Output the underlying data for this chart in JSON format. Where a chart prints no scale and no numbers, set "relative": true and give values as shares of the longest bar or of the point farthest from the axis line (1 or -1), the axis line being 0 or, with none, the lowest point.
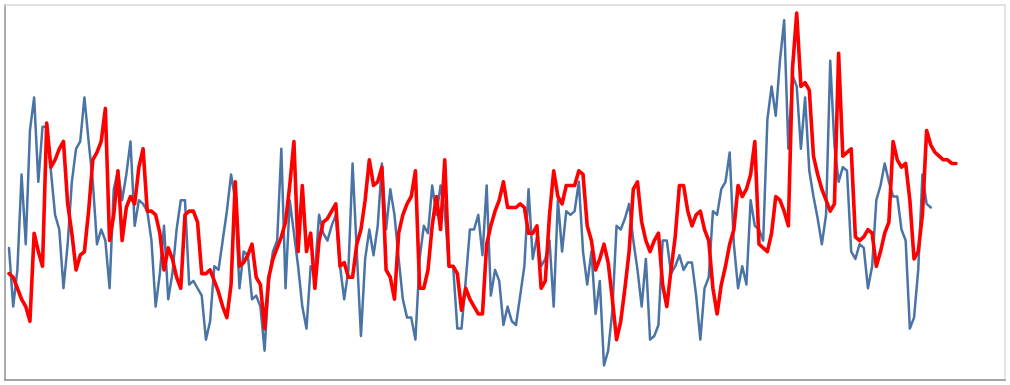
{
  "chart_data": {
    "type": "line",
    "relative": true,
    "categories": [
      null,
      null,
      null,
      null,
      null,
      null,
      null,
      null,
      null,
      null,
      null,
      null,
      null,
      null,
      null,
      null,
      null,
      null,
      null,
      null,
      null,
      null,
      null,
      null,
      null,
      null,
      null,
      null,
      null,
      null,
      null,
      null,
      null,
      null,
      null,
      null,
      null,
      null,
      null,
      null,
      null,
      null,
      null,
      null,
      null,
      null,
      null,
      null,
      null,
      null,
      null,
      null,
      null,
      null,
      null,
      null,
      null,
      null,
      null,
      null,
      null,
      null,
      null,
      null,
      null,
      null,
      null,
      null,
      null,
      null,
      null,
      null,
      null,
      null,
      null,
      null,
      null,
      null,
      null,
      null,
      null,
      null,
      null,
      null,
      null,
      null,
      null,
      null,
      null,
      null,
      null,
      null,
      null,
      null,
      null,
      null,
      null,
      null,
      null,
      null,
      null,
      null,
      null,
      null,
      null,
      null,
      null,
      null,
      null,
      null,
      null,
      null,
      null,
      null,
      null,
      null,
      null,
      null,
      null,
      null,
      null,
      null,
      null,
      null,
      null,
      null,
      null,
      null,
      null,
      null,
      null,
      null,
      null,
      null,
      null,
      null,
      null,
      null,
      null,
      null,
      null,
      null,
      null,
      null,
      null,
      null,
      null,
      null,
      null,
      null,
      null,
      null,
      null,
      null,
      null,
      null,
      null,
      null,
      null,
      null,
      null,
      null,
      null,
      null,
      null,
      null,
      null,
      null,
      null,
      null,
      null,
      null,
      null,
      null,
      null,
      null,
      null,
      null,
      null,
      null,
      null,
      null,
      null,
      null,
      null,
      null,
      null,
      null,
      null,
      null,
      null,
      null,
      null,
      null,
      null,
      null,
      null,
      null,
      null,
      null,
      null,
      null,
      null,
      null,
      null,
      null,
      null,
      null,
      null,
      null,
      null,
      null,
      null,
      null,
      null,
      null,
      null,
      null,
      null,
      null,
      null,
      null,
      null,
      null,
      null,
      null,
      null
    ],
    "series": [
      {
        "color": "#4a74a5",
        "values": [
          0.36,
          0.2,
          0.3,
          0.56,
          0.37,
          0.68,
          0.77,
          0.54,
          0.69,
          0.69,
          0.57,
          0.45,
          0.41,
          0.25,
          0.37,
          0.54,
          0.63,
          0.65,
          0.77,
          0.65,
          0.54,
          0.37,
          0.41,
          0.38,
          0.25,
          0.52,
          0.57,
          0.49,
          0.56,
          0.65,
          0.42,
          0.49,
          0.48,
          0.46,
          0.38,
          0.2,
          0.29,
          0.42,
          0.22,
          0.29,
          0.41,
          0.49,
          0.49,
          0.26,
          0.27,
          0.25,
          0.23,
          0.11,
          0.16,
          0.31,
          0.3,
          0.38,
          0.46,
          0.56,
          0.49,
          0.25,
          0.35,
          0.34,
          0.22,
          0.23,
          0.2,
          0.08,
          0.27,
          0.35,
          0.38,
          0.63,
          0.25,
          0.49,
          0.4,
          0.31,
          0.2,
          0.14,
          0.31,
          0.29,
          0.45,
          0.4,
          0.38,
          0.42,
          0.45,
          0.31,
          0.22,
          0.3,
          0.59,
          0.35,
          0.12,
          0.33,
          0.41,
          0.34,
          0.42,
          0.59,
          0.41,
          0.52,
          0.45,
          0.33,
          0.22,
          0.17,
          0.17,
          0.11,
          0.33,
          0.42,
          0.4,
          0.53,
          0.45,
          0.53,
          0.46,
          0.31,
          0.31,
          0.14,
          0.14,
          0.27,
          0.41,
          0.41,
          0.45,
          0.34,
          0.53,
          0.23,
          0.3,
          0.27,
          0.15,
          0.2,
          0.16,
          0.15,
          0.23,
          0.31,
          0.52,
          0.33,
          0.39,
          0.31,
          0.33,
          0.38,
          0.2,
          0.49,
          0.35,
          0.46,
          0.45,
          0.46,
          0.54,
          0.35,
          0.26,
          0.35,
          0.18,
          0.27,
          0.04,
          0.08,
          0.19,
          0.42,
          0.41,
          0.44,
          0.48,
          0.38,
          0.3,
          0.2,
          0.33,
          0.11,
          0.12,
          0.15,
          0.38,
          0.38,
          0.29,
          0.31,
          0.34,
          0.3,
          0.32,
          0.32,
          0.23,
          0.11,
          0.25,
          0.28,
          0.46,
          0.45,
          0.52,
          0.54,
          0.62,
          0.37,
          0.25,
          0.31,
          0.26,
          0.49,
          0.42,
          0.41,
          0.38,
          0.71,
          0.8,
          0.72,
          0.87,
          0.98,
          0.63,
          0.83,
          0.8,
          0.63,
          0.77,
          0.57,
          0.5,
          0.44,
          0.37,
          0.45,
          0.87,
          0.64,
          0.54,
          0.58,
          0.57,
          0.35,
          0.33,
          0.37,
          0.36,
          0.25,
          0.31,
          0.49,
          0.53,
          0.59,
          0.54,
          0.5,
          0.5,
          0.41,
          0.38,
          0.14,
          0.17,
          0.3,
          0.56,
          0.48,
          0.47,
          null,
          null,
          null,
          null,
          null,
          null
        ]
      },
      {
        "color": "#ff0000",
        "values": [
          0.29,
          0.28,
          0.25,
          0.22,
          0.2,
          0.16,
          0.4,
          0.35,
          0.31,
          0.7,
          0.58,
          0.6,
          0.63,
          0.65,
          0.48,
          0.4,
          0.3,
          0.34,
          0.35,
          0.46,
          0.6,
          0.62,
          0.65,
          0.74,
          0.38,
          0.45,
          0.57,
          0.38,
          0.47,
          0.5,
          0.48,
          0.58,
          0.63,
          0.46,
          0.46,
          0.45,
          0.4,
          0.3,
          0.36,
          0.33,
          0.28,
          0.25,
          0.45,
          0.46,
          0.46,
          0.43,
          0.29,
          0.29,
          0.3,
          0.27,
          0.24,
          0.2,
          0.17,
          0.26,
          0.54,
          0.31,
          0.32,
          0.34,
          0.37,
          0.28,
          0.26,
          0.14,
          0.28,
          0.33,
          0.36,
          0.39,
          0.43,
          0.53,
          0.65,
          0.35,
          0.53,
          0.35,
          0.4,
          0.25,
          0.38,
          0.43,
          0.44,
          0.46,
          0.48,
          0.31,
          0.32,
          0.28,
          0.28,
          0.37,
          0.41,
          0.49,
          0.6,
          0.53,
          0.54,
          0.58,
          0.3,
          0.28,
          0.22,
          0.4,
          0.45,
          0.48,
          0.5,
          0.57,
          0.25,
          0.25,
          0.3,
          0.42,
          0.5,
          0.41,
          0.6,
          0.31,
          0.31,
          0.29,
          0.19,
          0.25,
          0.22,
          0.2,
          0.18,
          0.18,
          0.37,
          0.42,
          0.46,
          0.49,
          0.54,
          0.47,
          0.47,
          0.47,
          0.48,
          0.47,
          0.4,
          0.4,
          0.42,
          0.25,
          0.27,
          0.45,
          0.57,
          0.5,
          0.48,
          0.53,
          0.53,
          0.53,
          0.57,
          0.56,
          0.42,
          0.38,
          0.3,
          0.33,
          0.37,
          0.32,
          0.22,
          0.11,
          0.16,
          0.25,
          0.35,
          0.52,
          0.54,
          0.43,
          0.38,
          0.35,
          0.38,
          0.4,
          0.26,
          0.2,
          0.3,
          0.39,
          0.53,
          0.53,
          0.46,
          0.42,
          0.45,
          0.46,
          0.41,
          0.38,
          0.25,
          0.18,
          0.26,
          0.31,
          0.37,
          0.41,
          0.53,
          0.5,
          0.52,
          0.56,
          0.65,
          0.37,
          0.36,
          0.35,
          0.4,
          0.5,
          0.49,
          0.46,
          0.42,
          0.85,
          1.0,
          0.8,
          0.81,
          0.79,
          0.61,
          0.56,
          0.52,
          0.49,
          0.46,
          0.48,
          0.89,
          0.61,
          0.62,
          0.63,
          0.39,
          0.38,
          0.39,
          0.41,
          0.4,
          0.31,
          0.35,
          0.4,
          0.43,
          0.65,
          0.6,
          0.58,
          0.59,
          0.49,
          0.33,
          0.35,
          0.45,
          0.68,
          0.64,
          0.62,
          0.61,
          0.6,
          0.6,
          0.59,
          0.59
        ]
      }
    ]
  }
}
